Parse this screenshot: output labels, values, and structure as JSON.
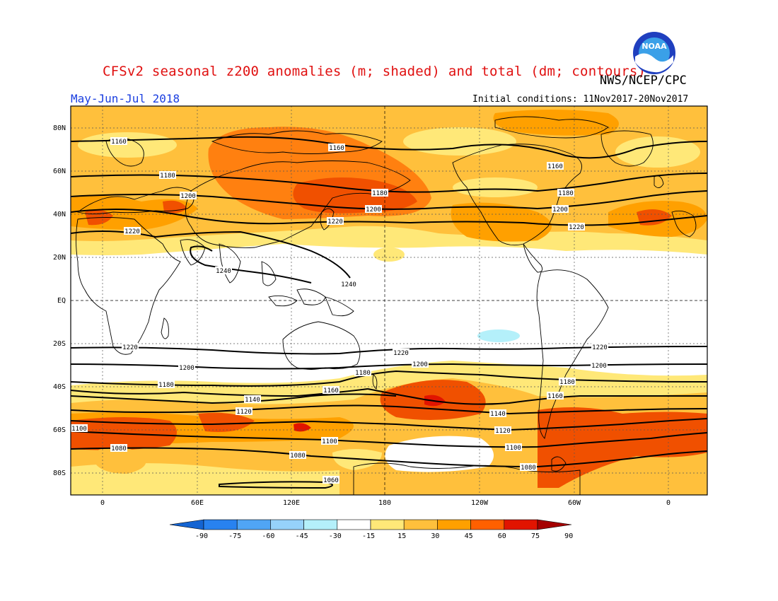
{
  "title": "CFSv2 seasonal z200 anomalies (m; shaded) and total (dm; contours)",
  "agency": "NWS/NCEP/CPC",
  "season": "May-Jun-Jul 2018",
  "initial_conditions": "Initial conditions: 11Nov2017-20Nov2017",
  "logo_text": "NOAA",
  "lat_labels": [
    "80N",
    "60N",
    "40N",
    "20N",
    "EQ",
    "20S",
    "40S",
    "60S",
    "80S"
  ],
  "lon_labels": [
    "0",
    "60E",
    "120E",
    "180",
    "120W",
    "60W",
    "0"
  ],
  "colorbar": {
    "labels": [
      "-90",
      "-75",
      "-60",
      "-45",
      "-30",
      "-15",
      "15",
      "30",
      "45",
      "60",
      "75",
      "90"
    ],
    "colors": [
      "#1464d2",
      "#2882f0",
      "#50a5f5",
      "#96d2fa",
      "#b4f0fa",
      "#ffffff",
      "#ffe878",
      "#ffc03c",
      "#ffa000",
      "#ff6000",
      "#e11400",
      "#a50000"
    ]
  },
  "contour_labels": [
    {
      "text": "1160"
    },
    {
      "text": "1160"
    },
    {
      "text": "1160"
    },
    {
      "text": "1180"
    },
    {
      "text": "1180"
    },
    {
      "text": "1180"
    },
    {
      "text": "1200"
    },
    {
      "text": "1200"
    },
    {
      "text": "1200"
    },
    {
      "text": "1220"
    },
    {
      "text": "1220"
    },
    {
      "text": "1220"
    },
    {
      "text": "1240"
    },
    {
      "text": "1240"
    },
    {
      "text": "1220"
    },
    {
      "text": "1220"
    },
    {
      "text": "1220"
    },
    {
      "text": "1200"
    },
    {
      "text": "1200"
    },
    {
      "text": "1200"
    },
    {
      "text": "1180"
    },
    {
      "text": "1180"
    },
    {
      "text": "1180"
    },
    {
      "text": "1160"
    },
    {
      "text": "1160"
    },
    {
      "text": "1140"
    },
    {
      "text": "1140"
    },
    {
      "text": "1120"
    },
    {
      "text": "1120"
    },
    {
      "text": "1100"
    },
    {
      "text": "1100"
    },
    {
      "text": "1100"
    },
    {
      "text": "1080"
    },
    {
      "text": "1080"
    },
    {
      "text": "1080"
    },
    {
      "text": "1060"
    }
  ]
}
